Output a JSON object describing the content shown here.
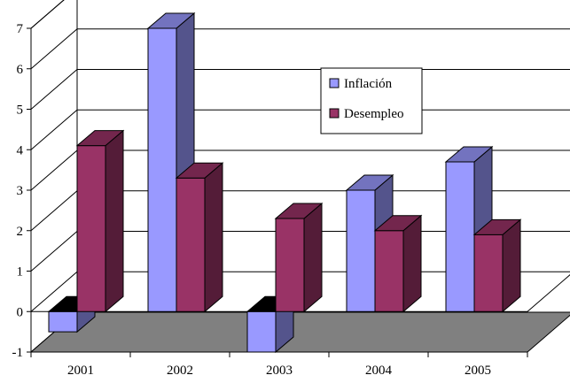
{
  "chart_data": {
    "type": "bar",
    "title": "",
    "xlabel": "",
    "ylabel": "",
    "categories": [
      "2001",
      "2002",
      "2003",
      "2004",
      "2005"
    ],
    "series": [
      {
        "name": "Inflación",
        "values": [
          -0.5,
          7.0,
          -1.0,
          3.0,
          3.7
        ],
        "color": "#9999ff"
      },
      {
        "name": "Desempleo",
        "values": [
          4.1,
          3.3,
          2.3,
          2.0,
          1.9
        ],
        "color": "#993366"
      }
    ],
    "yticks": [
      "-1",
      "0",
      "1",
      "2",
      "3",
      "4",
      "5",
      "6",
      "7"
    ],
    "ylim": [
      -1,
      7
    ],
    "grid": true,
    "legend_position": "top-right",
    "three_d": true
  }
}
